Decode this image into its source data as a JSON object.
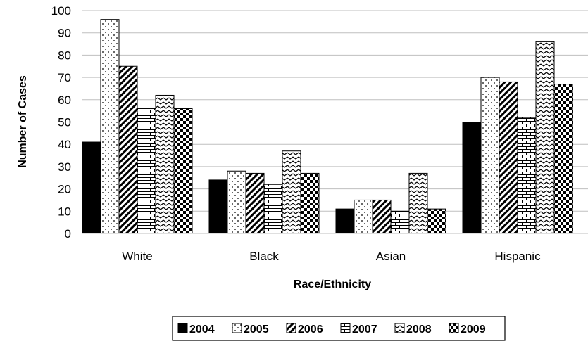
{
  "chart_data": {
    "type": "bar",
    "xlabel": "Race/Ethnicity",
    "ylabel": "Number of Cases",
    "ylim": [
      0,
      100
    ],
    "ytick_step": 10,
    "categories": [
      "White",
      "Black",
      "Asian",
      "Hispanic"
    ],
    "series": [
      {
        "name": "2004",
        "pattern": "solid",
        "values": [
          41,
          24,
          11,
          50
        ]
      },
      {
        "name": "2005",
        "pattern": "dots",
        "values": [
          96,
          28,
          15,
          70
        ]
      },
      {
        "name": "2006",
        "pattern": "diagonal",
        "values": [
          75,
          27,
          15,
          68
        ]
      },
      {
        "name": "2007",
        "pattern": "brick",
        "values": [
          56,
          22,
          10,
          52
        ]
      },
      {
        "name": "2008",
        "pattern": "zigzag",
        "values": [
          62,
          37,
          27,
          86
        ]
      },
      {
        "name": "2009",
        "pattern": "checker",
        "values": [
          56,
          27,
          11,
          67
        ]
      }
    ],
    "grid": true,
    "legend_position": "bottom",
    "colors": {
      "ink": "#000000",
      "grid": "#bfbfbf",
      "background": "#ffffff"
    }
  }
}
